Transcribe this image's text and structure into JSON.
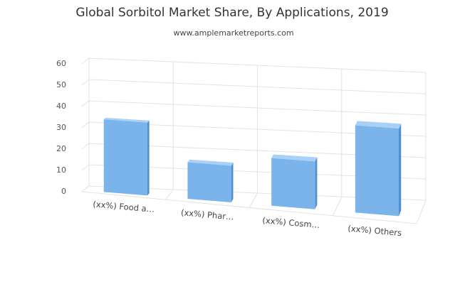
{
  "chart_data": {
    "type": "bar3d",
    "title": "Global Sorbitol Market Share, By Applications, 2019",
    "subtitle": "www.amplemarketreports.com",
    "categories": [
      "(xx%) Food a…",
      "(xx%) Phar…",
      "(xx%) Cosm…",
      "(xx%) Others"
    ],
    "values": [
      34,
      17,
      22,
      40
    ],
    "color": "#7ab4ea",
    "ylim": [
      0,
      60
    ],
    "yticks": [
      0,
      10,
      20,
      30,
      40,
      50,
      60
    ],
    "grid": true
  }
}
